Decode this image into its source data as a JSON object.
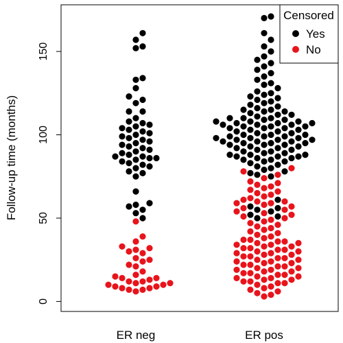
{
  "chart_data": {
    "type": "scatter",
    "subtype": "beeswarm",
    "title": "",
    "xlabel": "",
    "ylabel": "Follow-up time (months)",
    "categories": [
      "ER neg",
      "ER pos"
    ],
    "ylim": [
      -6,
      178
    ],
    "yticks": [
      0,
      50,
      100,
      150
    ],
    "grid": false,
    "legend": {
      "title": "Censored",
      "position": "top-right",
      "entries": [
        {
          "label": "Yes",
          "color": "#000000"
        },
        {
          "label": "No",
          "color": "#e8141c"
        }
      ]
    },
    "series": [
      {
        "name": "Yes",
        "color": "#000000",
        "points": {
          "ER neg": [
            161,
            157,
            153,
            152,
            134,
            133,
            128,
            123,
            121,
            119,
            114,
            114,
            110,
            108,
            107,
            106,
            105,
            104,
            103,
            102,
            101,
            100,
            99,
            98,
            97,
            96,
            95,
            94,
            93,
            92,
            91,
            90,
            89,
            88,
            87,
            87,
            86,
            86,
            85,
            84,
            83,
            82,
            81,
            80,
            78,
            77,
            75,
            66,
            59,
            58,
            57,
            55,
            53,
            50
          ],
          "ER pos": [
            171,
            170,
            161,
            157,
            153,
            150,
            147,
            145,
            143,
            141,
            139,
            137,
            135,
            133,
            131,
            130,
            128,
            126,
            125,
            124,
            123,
            122,
            121,
            120,
            119,
            118,
            117,
            116,
            115,
            115,
            114,
            114,
            113,
            112,
            112,
            111,
            110,
            110,
            110,
            109,
            109,
            108,
            108,
            108,
            107,
            107,
            107,
            106,
            106,
            106,
            105,
            105,
            105,
            104,
            104,
            104,
            103,
            103,
            102,
            102,
            101,
            101,
            100,
            100,
            100,
            99,
            99,
            99,
            98,
            98,
            98,
            97,
            97,
            97,
            96,
            96,
            96,
            95,
            95,
            95,
            94,
            94,
            94,
            93,
            93,
            92,
            92,
            91,
            91,
            90,
            90,
            89,
            89,
            88,
            88,
            88,
            87,
            87,
            87,
            86,
            86,
            85,
            85,
            84,
            84,
            83,
            82,
            81,
            80,
            79,
            78,
            77,
            76,
            75,
            61,
            57,
            56,
            55,
            54,
            52,
            51,
            50
          ]
        }
      },
      {
        "name": "No",
        "color": "#e8141c",
        "points": {
          "ER neg": [
            48,
            39,
            36,
            33,
            32,
            31,
            30,
            29,
            26,
            25,
            24,
            22,
            21,
            18,
            16,
            15,
            14,
            14,
            13,
            12,
            12,
            11,
            11,
            10,
            10,
            9,
            9,
            8,
            8,
            7,
            7,
            6
          ],
          "ER pos": [
            80,
            78,
            76,
            74,
            72,
            71,
            70,
            69,
            68,
            67,
            66,
            65,
            64,
            63,
            62,
            61,
            60,
            60,
            59,
            59,
            58,
            57,
            56,
            55,
            54,
            53,
            52,
            51,
            50,
            49,
            48,
            47,
            46,
            45,
            44,
            43,
            42,
            41,
            40,
            39,
            38,
            37,
            37,
            36,
            36,
            35,
            35,
            34,
            34,
            33,
            33,
            32,
            32,
            31,
            31,
            30,
            30,
            29,
            29,
            28,
            28,
            27,
            27,
            26,
            26,
            25,
            25,
            24,
            24,
            23,
            23,
            22,
            22,
            21,
            21,
            20,
            20,
            19,
            19,
            18,
            18,
            17,
            17,
            16,
            16,
            15,
            15,
            14,
            14,
            13,
            13,
            12,
            12,
            11,
            11,
            10,
            9,
            8,
            7,
            6,
            5,
            4,
            3
          ]
        }
      }
    ]
  }
}
